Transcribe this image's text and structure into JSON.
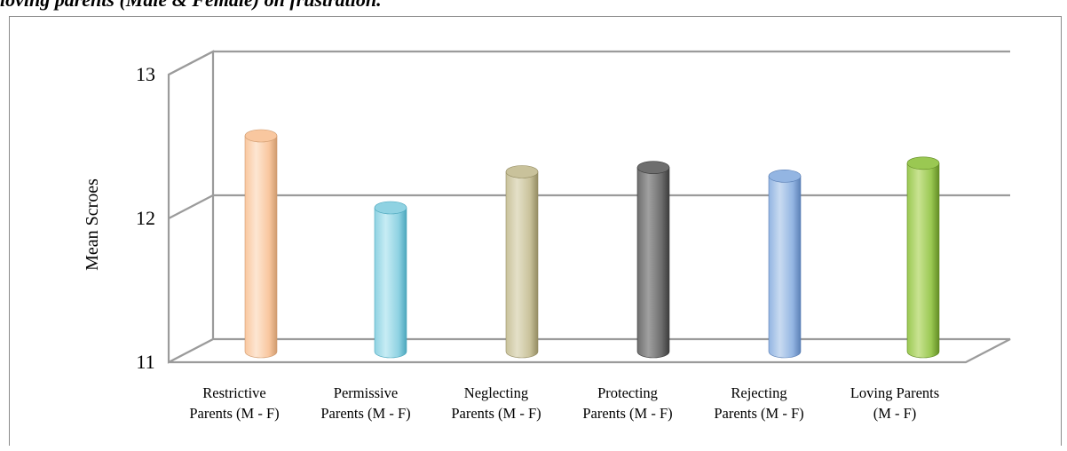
{
  "page_heading": "loving parents (Male & Female) on frustration.",
  "chart_data": {
    "type": "bar",
    "style": "3d-cylinder",
    "title": "",
    "ylabel": "Mean Scroes",
    "xlabel": "",
    "ylim": [
      11,
      13
    ],
    "yticks": [
      "11",
      "12",
      "13"
    ],
    "grid": true,
    "categories": [
      [
        "Restrictive",
        "Parents (M - F)"
      ],
      [
        "Permissive",
        "Parents (M - F)"
      ],
      [
        "Neglecting",
        "Parents (M - F)"
      ],
      [
        "Protecting",
        "Parents (M - F)"
      ],
      [
        "Rejecting",
        "Parents (M - F)"
      ],
      [
        "Loving Parents",
        "(M - F)"
      ]
    ],
    "values": [
      12.5,
      12.0,
      12.25,
      12.28,
      12.22,
      12.31
    ],
    "colors": [
      {
        "light": "#fde6d2",
        "mid": "#f9c79f",
        "dark": "#cf9a6e"
      },
      {
        "light": "#c7ecf4",
        "mid": "#8fd2e2",
        "dark": "#4ba7bd"
      },
      {
        "light": "#e4e0c8",
        "mid": "#c9c29b",
        "dark": "#948c62"
      },
      {
        "light": "#a0a0a0",
        "mid": "#6e6e6e",
        "dark": "#3c3c3c"
      },
      {
        "light": "#c9dbf1",
        "mid": "#93b5e2",
        "dark": "#5b80b6"
      },
      {
        "light": "#c9e392",
        "mid": "#9ac852",
        "dark": "#628c24"
      }
    ]
  }
}
